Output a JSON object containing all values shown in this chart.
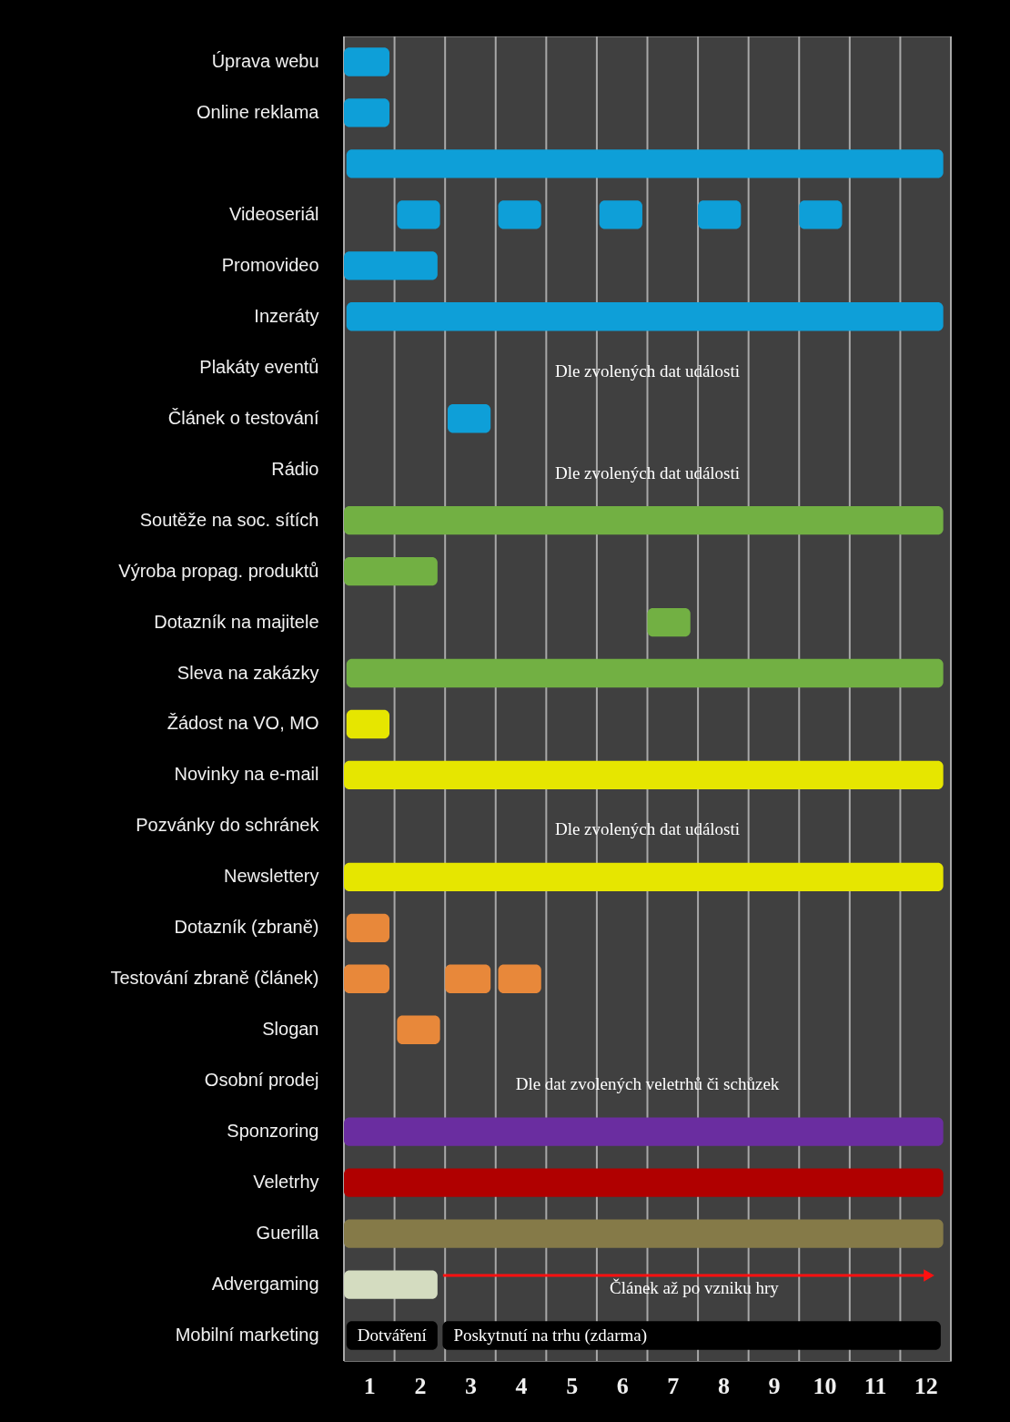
{
  "chart_data": {
    "type": "bar",
    "orientation": "horizontal",
    "categories": [
      "Úprava webu",
      "Online reklama",
      null,
      "Videoseriál",
      "Promovideo",
      "Inzeráty",
      "Plakáty eventů",
      "Článek o testování",
      "Rádio",
      "Soutěže na soc. sítích",
      "Výroba propag. produktů",
      "Dotazník na majitele",
      "Sleva na zakázky",
      "Žádost na VO, MO",
      "Novinky na e-mail",
      "Pozvánky do schránek",
      "Newslettery",
      "Dotazník (zbraně)",
      "Testování zbraně (článek)",
      "Slogan",
      "Osobní prodej",
      "Sponzoring",
      "Veletrhy",
      "Guerilla",
      "Advergaming",
      "Mobilní marketing"
    ],
    "series": [
      {
        "value_labels": [
          null,
          null,
          null,
          null,
          null,
          null,
          null,
          null,
          null,
          null,
          null,
          null,
          null,
          null,
          null,
          null,
          null,
          null,
          null,
          null,
          null,
          null,
          null,
          null,
          null,
          "Dotváření"
        ],
        "values": [
          0.9,
          0.9,
          11.8,
          0.85,
          1.85,
          11.8,
          null,
          0.85,
          null,
          11.85,
          1.85,
          0.85,
          11.8,
          0.85,
          11.85,
          null,
          11.85,
          0.85,
          0.9,
          0.85,
          null,
          11.85,
          11.85,
          11.85,
          1.85,
          1.8
        ],
        "base": [
          0.5,
          0.5,
          0.55,
          1.55,
          0.5,
          0.55,
          null,
          2.55,
          null,
          0.5,
          0.5,
          6.5,
          0.55,
          0.55,
          0.5,
          null,
          0.5,
          0.55,
          0.5,
          1.55,
          null,
          0.5,
          0.5,
          0.5,
          0.5,
          0.55
        ],
        "colors": [
          "#0e9fd8",
          "#0e9fd8",
          "#0e9fd8",
          "#0e9fd8",
          "#0e9fd8",
          "#0e9fd8",
          null,
          "#0e9fd8",
          null,
          "#72b043",
          "#72b043",
          "#72b043",
          "#72b043",
          "#e6e600",
          "#e6e600",
          null,
          "#e6e600",
          "#e8883a",
          "#e8883a",
          "#e8883a",
          null,
          "#6a2da0",
          "#b00000",
          "#857a48",
          "#d4dcc0",
          "#000000"
        ]
      },
      {
        "value_labels": [
          null,
          null,
          null,
          null,
          null,
          null,
          null,
          null,
          null,
          null,
          null,
          null,
          null,
          null,
          null,
          null,
          null,
          null,
          null,
          null,
          null,
          null,
          null,
          null,
          null,
          "Poskytnutí na trhu (zdarma)"
        ],
        "values": [
          null,
          null,
          null,
          0.85,
          null,
          null,
          null,
          null,
          null,
          null,
          null,
          null,
          null,
          null,
          null,
          null,
          null,
          null,
          0.9,
          null,
          null,
          null,
          null,
          null,
          null,
          9.85
        ],
        "base": [
          null,
          null,
          null,
          3.55,
          null,
          null,
          null,
          null,
          null,
          null,
          null,
          null,
          null,
          null,
          null,
          null,
          null,
          null,
          2.5,
          null,
          null,
          null,
          null,
          null,
          null,
          2.45
        ],
        "colors": [
          null,
          null,
          null,
          "#0e9fd8",
          null,
          null,
          null,
          null,
          null,
          null,
          null,
          null,
          null,
          null,
          null,
          null,
          null,
          null,
          "#e8883a",
          null,
          null,
          null,
          null,
          null,
          null,
          "#000000"
        ]
      },
      {
        "values": [
          null,
          null,
          null,
          0.85,
          null,
          null,
          null,
          null,
          null,
          null,
          null,
          null,
          null,
          null,
          null,
          null,
          null,
          null,
          0.85,
          null,
          null,
          null,
          null,
          null,
          null,
          null
        ],
        "base": [
          null,
          null,
          null,
          5.55,
          null,
          null,
          null,
          null,
          null,
          null,
          null,
          null,
          null,
          null,
          null,
          null,
          null,
          null,
          3.55,
          null,
          null,
          null,
          null,
          null,
          null,
          null
        ],
        "colors": [
          null,
          null,
          null,
          "#0e9fd8",
          null,
          null,
          null,
          null,
          null,
          null,
          null,
          null,
          null,
          null,
          null,
          null,
          null,
          null,
          "#e8883a",
          null,
          null,
          null,
          null,
          null,
          null,
          null
        ]
      },
      {
        "values": [
          null,
          null,
          null,
          0.85,
          null,
          null,
          null,
          null,
          null,
          null,
          null,
          null,
          null,
          null,
          null,
          null,
          null,
          null,
          null,
          null,
          null,
          null,
          null,
          null,
          null,
          null
        ],
        "base": [
          null,
          null,
          null,
          7.5,
          null,
          null,
          null,
          null,
          null,
          null,
          null,
          null,
          null,
          null,
          null,
          null,
          null,
          null,
          null,
          null,
          null,
          null,
          null,
          null,
          null,
          null
        ],
        "colors": [
          null,
          null,
          null,
          "#0e9fd8",
          null,
          null,
          null,
          null,
          null,
          null,
          null,
          null,
          null,
          null,
          null,
          null,
          null,
          null,
          null,
          null,
          null,
          null,
          null,
          null,
          null,
          null
        ]
      },
      {
        "values": [
          null,
          null,
          null,
          0.85,
          null,
          null,
          null,
          null,
          null,
          null,
          null,
          null,
          null,
          null,
          null,
          null,
          null,
          null,
          null,
          null,
          null,
          null,
          null,
          null,
          null,
          null
        ],
        "base": [
          null,
          null,
          null,
          9.5,
          null,
          null,
          null,
          null,
          null,
          null,
          null,
          null,
          null,
          null,
          null,
          null,
          null,
          null,
          null,
          null,
          null,
          null,
          null,
          null,
          null,
          null
        ],
        "colors": [
          null,
          null,
          null,
          "#0e9fd8",
          null,
          null,
          null,
          null,
          null,
          null,
          null,
          null,
          null,
          null,
          null,
          null,
          null,
          null,
          null,
          null,
          null,
          null,
          null,
          null,
          null,
          null
        ]
      }
    ],
    "xlim": [
      0.5,
      12.5
    ],
    "xticks": [
      {
        "value": 0.5,
        "label": null
      },
      1,
      {
        "value": 1.5,
        "label": null
      },
      2,
      {
        "value": 2.5,
        "label": null
      },
      3,
      {
        "value": 3.5,
        "label": null
      },
      4,
      {
        "value": 4.5,
        "label": null
      },
      5,
      {
        "value": 5.5,
        "label": null
      },
      6,
      {
        "value": 6.5,
        "label": null
      },
      7,
      {
        "value": 7.5,
        "label": null
      },
      8,
      {
        "value": 8.5,
        "label": null
      },
      9,
      {
        "value": 9.5,
        "label": null
      },
      10,
      {
        "value": 10.5,
        "label": null
      },
      11,
      {
        "value": 11.5,
        "label": null
      },
      12,
      {
        "value": 12.5,
        "label": null
      }
    ],
    "grid": "x",
    "annotations": [
      "Dle zvolených dat události",
      "Dle zvolených dat události",
      "Dle zvolených dat události",
      "Dle dat zvolených veletrhů či schůzek",
      "Článek až po vzniku hry"
    ]
  }
}
